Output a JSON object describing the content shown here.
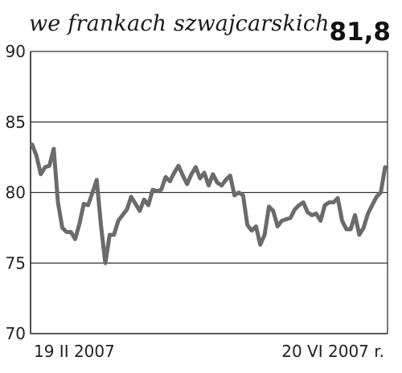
{
  "header": {
    "title": "we frankach szwajcarskich",
    "current_value": "81,8"
  },
  "chart_data": {
    "type": "line",
    "title": "we frankach szwajcarskich",
    "current_value_label": "81,8",
    "xlabel": "",
    "ylabel": "",
    "ylim": [
      70,
      90
    ],
    "yticks": [
      70,
      75,
      80,
      85,
      90
    ],
    "ytick_labels": [
      "70",
      "75",
      "80",
      "85",
      "90"
    ],
    "grid": true,
    "x_start_label": "19 II 2007",
    "x_end_label": "20 VI 2007 r.",
    "series": [
      {
        "values": [
          83.4,
          82.6,
          81.3,
          81.8,
          81.9,
          83.1,
          79.3,
          77.5,
          77.2,
          77.2,
          76.7,
          77.8,
          79.2,
          79.1,
          80.0,
          80.9,
          77.6,
          75.0,
          77.0,
          77.0,
          78.0,
          78.4,
          78.8,
          79.7,
          79.2,
          78.7,
          79.5,
          79.1,
          80.2,
          80.1,
          80.2,
          81.1,
          80.8,
          81.4,
          81.9,
          81.2,
          80.6,
          81.3,
          81.8,
          81.0,
          81.4,
          80.5,
          81.3,
          80.7,
          80.5,
          80.9,
          81.2,
          79.8,
          80.0,
          79.8,
          77.7,
          77.3,
          77.6,
          76.3,
          77.0,
          79.0,
          78.7,
          77.6,
          78.0,
          78.1,
          78.2,
          78.8,
          79.1,
          79.3,
          78.6,
          78.4,
          78.5,
          78.0,
          79.1,
          79.3,
          79.3,
          79.6,
          78.0,
          77.4,
          77.4,
          78.4,
          77.0,
          77.5,
          78.5,
          79.1,
          79.7,
          80.0,
          81.8
        ]
      }
    ],
    "line_color": "#6b6b6b"
  }
}
